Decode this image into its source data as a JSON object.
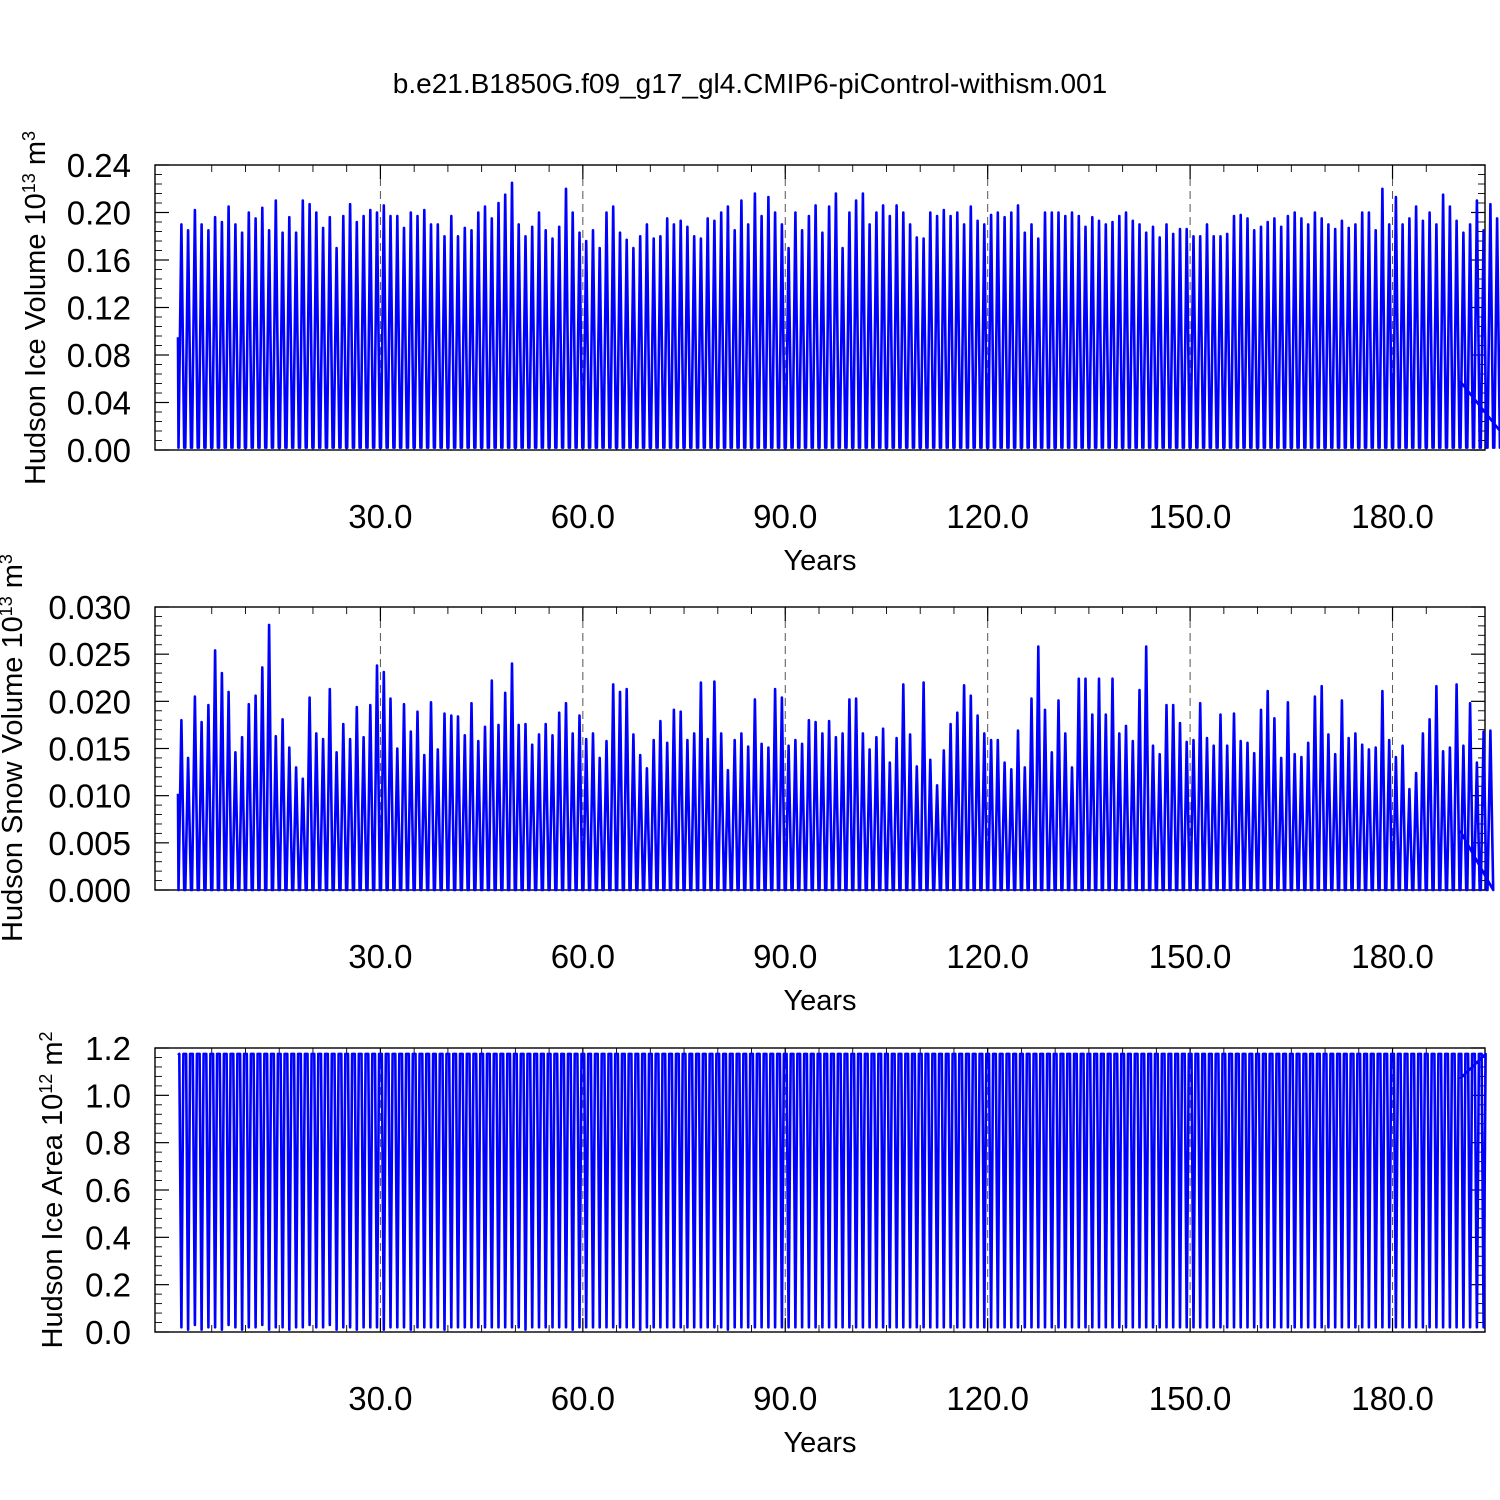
{
  "page": {
    "title": "b.e21.B1850G.f09_g17_gl4.CMIP6-piControl-withism.001"
  },
  "style": {
    "line_color": "#0000ff",
    "axis_color": "#000000",
    "grid_color": "#555555",
    "background": "#ffffff"
  },
  "chart_data": [
    {
      "type": "line",
      "title": "b.e21.B1850G.f09_g17_gl4.CMIP6-piControl-withism.001",
      "xlabel": "Years",
      "ylabel_main": "Hudson Ice Volume 10",
      "ylabel_exp": "13",
      "ylabel_unit": " m",
      "ylabel_unit_exp": "3",
      "xlim": [
        0,
        190
      ],
      "ylim": [
        0,
        0.24
      ],
      "x_ticks": [
        30,
        60,
        90,
        120,
        150,
        180
      ],
      "x_tick_labels": [
        "30.0",
        "60.0",
        "90.0",
        "120.0",
        "150.0",
        "180.0"
      ],
      "y_ticks": [
        0,
        0.04,
        0.08,
        0.12,
        0.16,
        0.2,
        0.24
      ],
      "y_tick_labels": [
        "0.00",
        "0.04",
        "0.08",
        "0.12",
        "0.16",
        "0.20",
        "0.24"
      ],
      "grid": "vertical dashed at x ticks",
      "series": [
        {
          "x_start": 0.5,
          "x_step": 1,
          "y_start": 0.095,
          "y_end": 0.058,
          "seasonal_min": 0.002,
          "annual_max": [
            0.19,
            0.185,
            0.202,
            0.19,
            0.185,
            0.196,
            0.192,
            0.205,
            0.19,
            0.183,
            0.2,
            0.195,
            0.204,
            0.185,
            0.21,
            0.183,
            0.196,
            0.183,
            0.21,
            0.207,
            0.2,
            0.187,
            0.196,
            0.17,
            0.197,
            0.207,
            0.192,
            0.197,
            0.202,
            0.2,
            0.206,
            0.197,
            0.197,
            0.187,
            0.2,
            0.197,
            0.202,
            0.19,
            0.19,
            0.18,
            0.197,
            0.18,
            0.187,
            0.185,
            0.2,
            0.205,
            0.195,
            0.208,
            0.215,
            0.225,
            0.19,
            0.18,
            0.188,
            0.2,
            0.185,
            0.178,
            0.188,
            0.22,
            0.2,
            0.183,
            0.176,
            0.185,
            0.17,
            0.2,
            0.205,
            0.183,
            0.177,
            0.17,
            0.18,
            0.19,
            0.178,
            0.18,
            0.195,
            0.19,
            0.193,
            0.188,
            0.18,
            0.178,
            0.195,
            0.193,
            0.2,
            0.205,
            0.185,
            0.21,
            0.19,
            0.216,
            0.197,
            0.213,
            0.2,
            0.19,
            0.17,
            0.2,
            0.185,
            0.197,
            0.206,
            0.183,
            0.205,
            0.216,
            0.17,
            0.2,
            0.21,
            0.216,
            0.19,
            0.2,
            0.206,
            0.197,
            0.206,
            0.2,
            0.19,
            0.179,
            0.178,
            0.2,
            0.197,
            0.202,
            0.197,
            0.2,
            0.19,
            0.205,
            0.193,
            0.19,
            0.198,
            0.2,
            0.196,
            0.2,
            0.206,
            0.183,
            0.19,
            0.178,
            0.2,
            0.2,
            0.2,
            0.197,
            0.2,
            0.197,
            0.188,
            0.196,
            0.193,
            0.19,
            0.192,
            0.197,
            0.2,
            0.193,
            0.19,
            0.183,
            0.188,
            0.179,
            0.19,
            0.182,
            0.186,
            0.186,
            0.18,
            0.18,
            0.19,
            0.18,
            0.18,
            0.182,
            0.197,
            0.198,
            0.195,
            0.185,
            0.188,
            0.192,
            0.195,
            0.188,
            0.197,
            0.2,
            0.195,
            0.19,
            0.2,
            0.195,
            0.19,
            0.186,
            0.193,
            0.187,
            0.19,
            0.2,
            0.2,
            0.185,
            0.22,
            0.19,
            0.213,
            0.19,
            0.195,
            0.205,
            0.193,
            0.2,
            0.19,
            0.215,
            0.205,
            0.193,
            0.183,
            0.19,
            0.21,
            0.185,
            0.207,
            0.195,
            0.193,
            0.198
          ]
        }
      ]
    },
    {
      "type": "line",
      "title": "",
      "xlabel": "Years",
      "ylabel_main": "Hudson Snow Volume 10",
      "ylabel_exp": "13",
      "ylabel_unit": " m",
      "ylabel_unit_exp": "3",
      "xlim": [
        0,
        190
      ],
      "ylim": [
        0,
        0.03
      ],
      "x_ticks": [
        30,
        60,
        90,
        120,
        150,
        180
      ],
      "x_tick_labels": [
        "30.0",
        "60.0",
        "90.0",
        "120.0",
        "150.0",
        "180.0"
      ],
      "y_ticks": [
        0,
        0.005,
        0.01,
        0.015,
        0.02,
        0.025,
        0.03
      ],
      "y_tick_labels": [
        "0.000",
        "0.005",
        "0.010",
        "0.015",
        "0.020",
        "0.025",
        "0.030"
      ],
      "grid": "vertical dashed at x ticks",
      "series": [
        {
          "x_start": 0.5,
          "x_step": 1,
          "y_start": 0.0102,
          "y_end": 0.0063,
          "seasonal_min": 0.0,
          "annual_max": [
            0.018,
            0.014,
            0.0205,
            0.0178,
            0.0196,
            0.0254,
            0.023,
            0.021,
            0.0146,
            0.0162,
            0.0197,
            0.0206,
            0.0236,
            0.0281,
            0.0163,
            0.0181,
            0.0151,
            0.013,
            0.0118,
            0.0204,
            0.0166,
            0.016,
            0.0213,
            0.0146,
            0.0176,
            0.016,
            0.0194,
            0.0162,
            0.0196,
            0.0238,
            0.0231,
            0.0203,
            0.015,
            0.0197,
            0.0168,
            0.0189,
            0.0143,
            0.0199,
            0.0149,
            0.0187,
            0.0185,
            0.0184,
            0.0164,
            0.0198,
            0.0158,
            0.0173,
            0.0222,
            0.0175,
            0.0209,
            0.024,
            0.0175,
            0.0176,
            0.0154,
            0.0165,
            0.0176,
            0.0164,
            0.0188,
            0.0198,
            0.0166,
            0.0185,
            0.016,
            0.0166,
            0.014,
            0.0158,
            0.0218,
            0.021,
            0.0213,
            0.0165,
            0.0143,
            0.0129,
            0.0159,
            0.0179,
            0.0156,
            0.0191,
            0.0189,
            0.0159,
            0.0166,
            0.022,
            0.016,
            0.0221,
            0.0166,
            0.0127,
            0.0159,
            0.0166,
            0.0152,
            0.0202,
            0.0155,
            0.0151,
            0.0213,
            0.0204,
            0.0153,
            0.0159,
            0.0155,
            0.018,
            0.0178,
            0.0166,
            0.0179,
            0.0162,
            0.0166,
            0.0202,
            0.0203,
            0.0166,
            0.0149,
            0.0162,
            0.0171,
            0.0135,
            0.0161,
            0.0218,
            0.0165,
            0.0131,
            0.022,
            0.0138,
            0.0111,
            0.0148,
            0.0176,
            0.0188,
            0.0217,
            0.0206,
            0.0185,
            0.0166,
            0.0159,
            0.0159,
            0.0135,
            0.0128,
            0.0169,
            0.013,
            0.0203,
            0.0258,
            0.0191,
            0.0146,
            0.0201,
            0.0166,
            0.013,
            0.0224,
            0.0224,
            0.0186,
            0.0224,
            0.0186,
            0.0224,
            0.0166,
            0.0174,
            0.0158,
            0.0212,
            0.0258,
            0.0153,
            0.0144,
            0.0196,
            0.0196,
            0.0177,
            0.0157,
            0.0159,
            0.0198,
            0.0161,
            0.0153,
            0.0186,
            0.0153,
            0.0187,
            0.0158,
            0.0156,
            0.0145,
            0.0191,
            0.0211,
            0.0182,
            0.014,
            0.0199,
            0.0144,
            0.0141,
            0.0156,
            0.0205,
            0.0216,
            0.0165,
            0.0144,
            0.0201,
            0.0161,
            0.0166,
            0.0154,
            0.0149,
            0.0151,
            0.0211,
            0.0159,
            0.0141,
            0.0153,
            0.0107,
            0.0124,
            0.0166,
            0.0181,
            0.0216,
            0.0147,
            0.0151,
            0.0218,
            0.0153,
            0.0198,
            0.0135,
            0.0168,
            0.0169
          ]
        }
      ]
    },
    {
      "type": "line",
      "title": "",
      "xlabel": "Years",
      "ylabel_main": "Hudson Ice Area 10",
      "ylabel_exp": "12",
      "ylabel_unit": " m",
      "ylabel_unit_exp": "2",
      "xlim": [
        0,
        190
      ],
      "ylim": [
        0,
        1.2
      ],
      "x_ticks": [
        30,
        60,
        90,
        120,
        150,
        180
      ],
      "x_tick_labels": [
        "30.0",
        "60.0",
        "90.0",
        "120.0",
        "150.0",
        "180.0"
      ],
      "y_ticks": [
        0,
        0.2,
        0.4,
        0.6,
        0.8,
        1.0,
        1.2
      ],
      "y_tick_labels": [
        "0.0",
        "0.2",
        "0.4",
        "0.6",
        "0.8",
        "1.0",
        "1.2"
      ],
      "grid": "vertical dashed at x ticks",
      "series": [
        {
          "x_start": 0.5,
          "x_step": 1,
          "y_start": 1.17,
          "y_end": 1.07,
          "seasonal_max": 1.175,
          "annual_min": [
            0.02,
            0.01,
            0.03,
            0.01,
            0.02,
            0.02,
            0.01,
            0.03,
            0.02,
            0.01,
            0.02,
            0.02,
            0.03,
            0.01,
            0.02,
            0.02,
            0.01,
            0.02,
            0.02,
            0.03,
            0.02,
            0.02,
            0.03,
            0.01,
            0.02,
            0.02,
            0.01,
            0.02,
            0.02,
            0.02,
            0.01,
            0.02,
            0.02,
            0.02,
            0.01,
            0.02,
            0.02,
            0.02,
            0.02,
            0.01,
            0.02,
            0.02,
            0.02,
            0.02,
            0.02,
            0.02,
            0.02,
            0.02,
            0.02,
            0.02,
            0.02,
            0.01,
            0.02,
            0.02,
            0.02,
            0.02,
            0.02,
            0.02,
            0.01,
            0.02,
            0.02,
            0.02,
            0.02,
            0.02,
            0.02,
            0.02,
            0.02,
            0.02,
            0.01,
            0.02,
            0.02,
            0.02,
            0.02,
            0.02,
            0.02,
            0.02,
            0.02,
            0.02,
            0.02,
            0.02,
            0.02,
            0.01,
            0.02,
            0.02,
            0.02,
            0.02,
            0.02,
            0.02,
            0.02,
            0.02,
            0.02,
            0.02,
            0.02,
            0.02,
            0.02,
            0.02,
            0.02,
            0.02,
            0.02,
            0.02,
            0.02,
            0.02,
            0.02,
            0.02,
            0.02,
            0.02,
            0.02,
            0.02,
            0.02,
            0.02,
            0.02,
            0.02,
            0.02,
            0.02,
            0.02,
            0.02,
            0.02,
            0.02,
            0.02,
            0.02,
            0.02,
            0.02,
            0.02,
            0.02,
            0.02,
            0.02,
            0.02,
            0.02,
            0.02,
            0.02,
            0.02,
            0.02,
            0.02,
            0.02,
            0.02,
            0.02,
            0.02,
            0.02,
            0.02,
            0.02,
            0.02,
            0.02,
            0.02,
            0.02,
            0.02,
            0.02,
            0.02,
            0.02,
            0.02,
            0.02,
            0.02,
            0.02,
            0.02,
            0.02,
            0.02,
            0.02,
            0.02,
            0.02,
            0.02,
            0.02,
            0.02,
            0.02,
            0.02,
            0.02,
            0.02,
            0.02,
            0.02,
            0.02,
            0.02,
            0.02,
            0.02,
            0.02,
            0.02,
            0.02,
            0.02,
            0.02,
            0.02,
            0.02,
            0.02,
            0.02,
            0.02,
            0.02,
            0.02,
            0.02,
            0.02,
            0.02,
            0.02,
            0.02,
            0.02,
            0.02,
            0.02,
            0.02,
            0.02,
            0.02
          ]
        }
      ]
    }
  ]
}
